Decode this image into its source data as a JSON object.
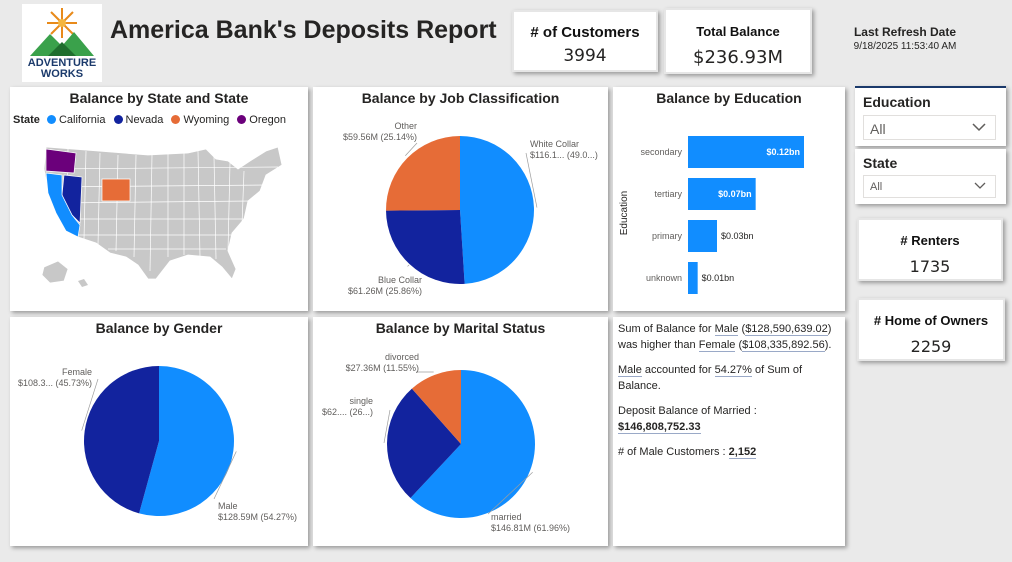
{
  "header": {
    "logo_text_line1": "ADVENTURE",
    "logo_text_line2": "WORKS",
    "report_title": "America Bank's Deposits Report",
    "refresh_label": "Last Refresh Date",
    "refresh_value": "9/18/2025 11:53:40 AM"
  },
  "kpis": {
    "customers": {
      "label": "# of Customers",
      "value": "3994"
    },
    "balance": {
      "label": "Total Balance",
      "value": "$236.93M"
    },
    "renters": {
      "label": "# Renters",
      "value": "1735"
    },
    "home_owners": {
      "label": "# Home of Owners",
      "value": "2259"
    }
  },
  "slicers": {
    "education": {
      "label": "Education",
      "value": "All"
    },
    "state": {
      "label": "State",
      "value": "All"
    }
  },
  "colors": {
    "light_blue": "#118dff",
    "dark_blue": "#12239e",
    "orange": "#e66c37",
    "purple": "#6b007b",
    "map_gray": "#c8c8c8"
  },
  "map_visual": {
    "title": "Balance by State and State",
    "legend_title": "State",
    "legend": [
      {
        "name": "California",
        "color": "#118dff"
      },
      {
        "name": "Nevada",
        "color": "#12239e"
      },
      {
        "name": "Wyoming",
        "color": "#e66c37"
      },
      {
        "name": "Oregon",
        "color": "#6b007b"
      }
    ]
  },
  "narrative": {
    "p1_a": "Sum of Balance for ",
    "p1_male": "Male",
    "p1_b": " (",
    "p1_male_val": "$128,590,639.02",
    "p1_c": ")",
    "p1_d": "was higher than ",
    "p1_female": "Female",
    "p1_e": " (",
    "p1_female_val": "$108,335,892.56",
    "p1_f": ").",
    "p2_male": "Male",
    "p2_a": " accounted for ",
    "p2_pct": "54.27%",
    "p2_b": " of Sum of",
    "p2_c": "Balance.",
    "p3_label": "Deposit Balance of Married :",
    "p3_value": "$146,808,752.33",
    "p4_label": "# of Male Customers : ",
    "p4_value": "2,152"
  },
  "chart_data": [
    {
      "type": "pie",
      "title": "Balance by Job Classification",
      "slices": [
        {
          "name": "White Collar",
          "value": 116.1,
          "label": "White Collar",
          "sublabel": "$116.1... (49.0...)",
          "color": "#118dff"
        },
        {
          "name": "Blue Collar",
          "value": 61.26,
          "label": "Blue Collar",
          "sublabel": "$61.26M (25.86%)",
          "color": "#12239e"
        },
        {
          "name": "Other",
          "value": 59.56,
          "label": "Other",
          "sublabel": "$59.56M (25.14%)",
          "color": "#e66c37"
        }
      ]
    },
    {
      "type": "bar",
      "title": "Balance by Education",
      "ylabel": "Education",
      "categories": [
        "secondary",
        "tertiary",
        "primary",
        "unknown"
      ],
      "values": [
        0.12,
        0.07,
        0.03,
        0.01
      ],
      "data_labels": [
        "$0.12bn",
        "$0.07bn",
        "$0.03bn",
        "$0.01bn"
      ],
      "xlim": [
        0,
        0.12
      ],
      "color": "#118dff"
    },
    {
      "type": "pie",
      "title": "Balance by Gender",
      "slices": [
        {
          "name": "Male",
          "value": 128.59,
          "label": "Male",
          "sublabel": "$128.59M (54.27%)",
          "color": "#118dff"
        },
        {
          "name": "Female",
          "value": 108.34,
          "label": "Female",
          "sublabel": "$108.3... (45.73%)",
          "color": "#12239e"
        }
      ]
    },
    {
      "type": "pie",
      "title": "Balance by Marital Status",
      "slices": [
        {
          "name": "married",
          "value": 146.81,
          "label": "married",
          "sublabel": "$146.81M (61.96%)",
          "color": "#118dff"
        },
        {
          "name": "single",
          "value": 62.76,
          "label": "single",
          "sublabel": "$62.... (26...)",
          "color": "#12239e"
        },
        {
          "name": "divorced",
          "value": 27.36,
          "label": "divorced",
          "sublabel": "$27.36M (11.55%)",
          "color": "#e66c37"
        }
      ]
    }
  ]
}
